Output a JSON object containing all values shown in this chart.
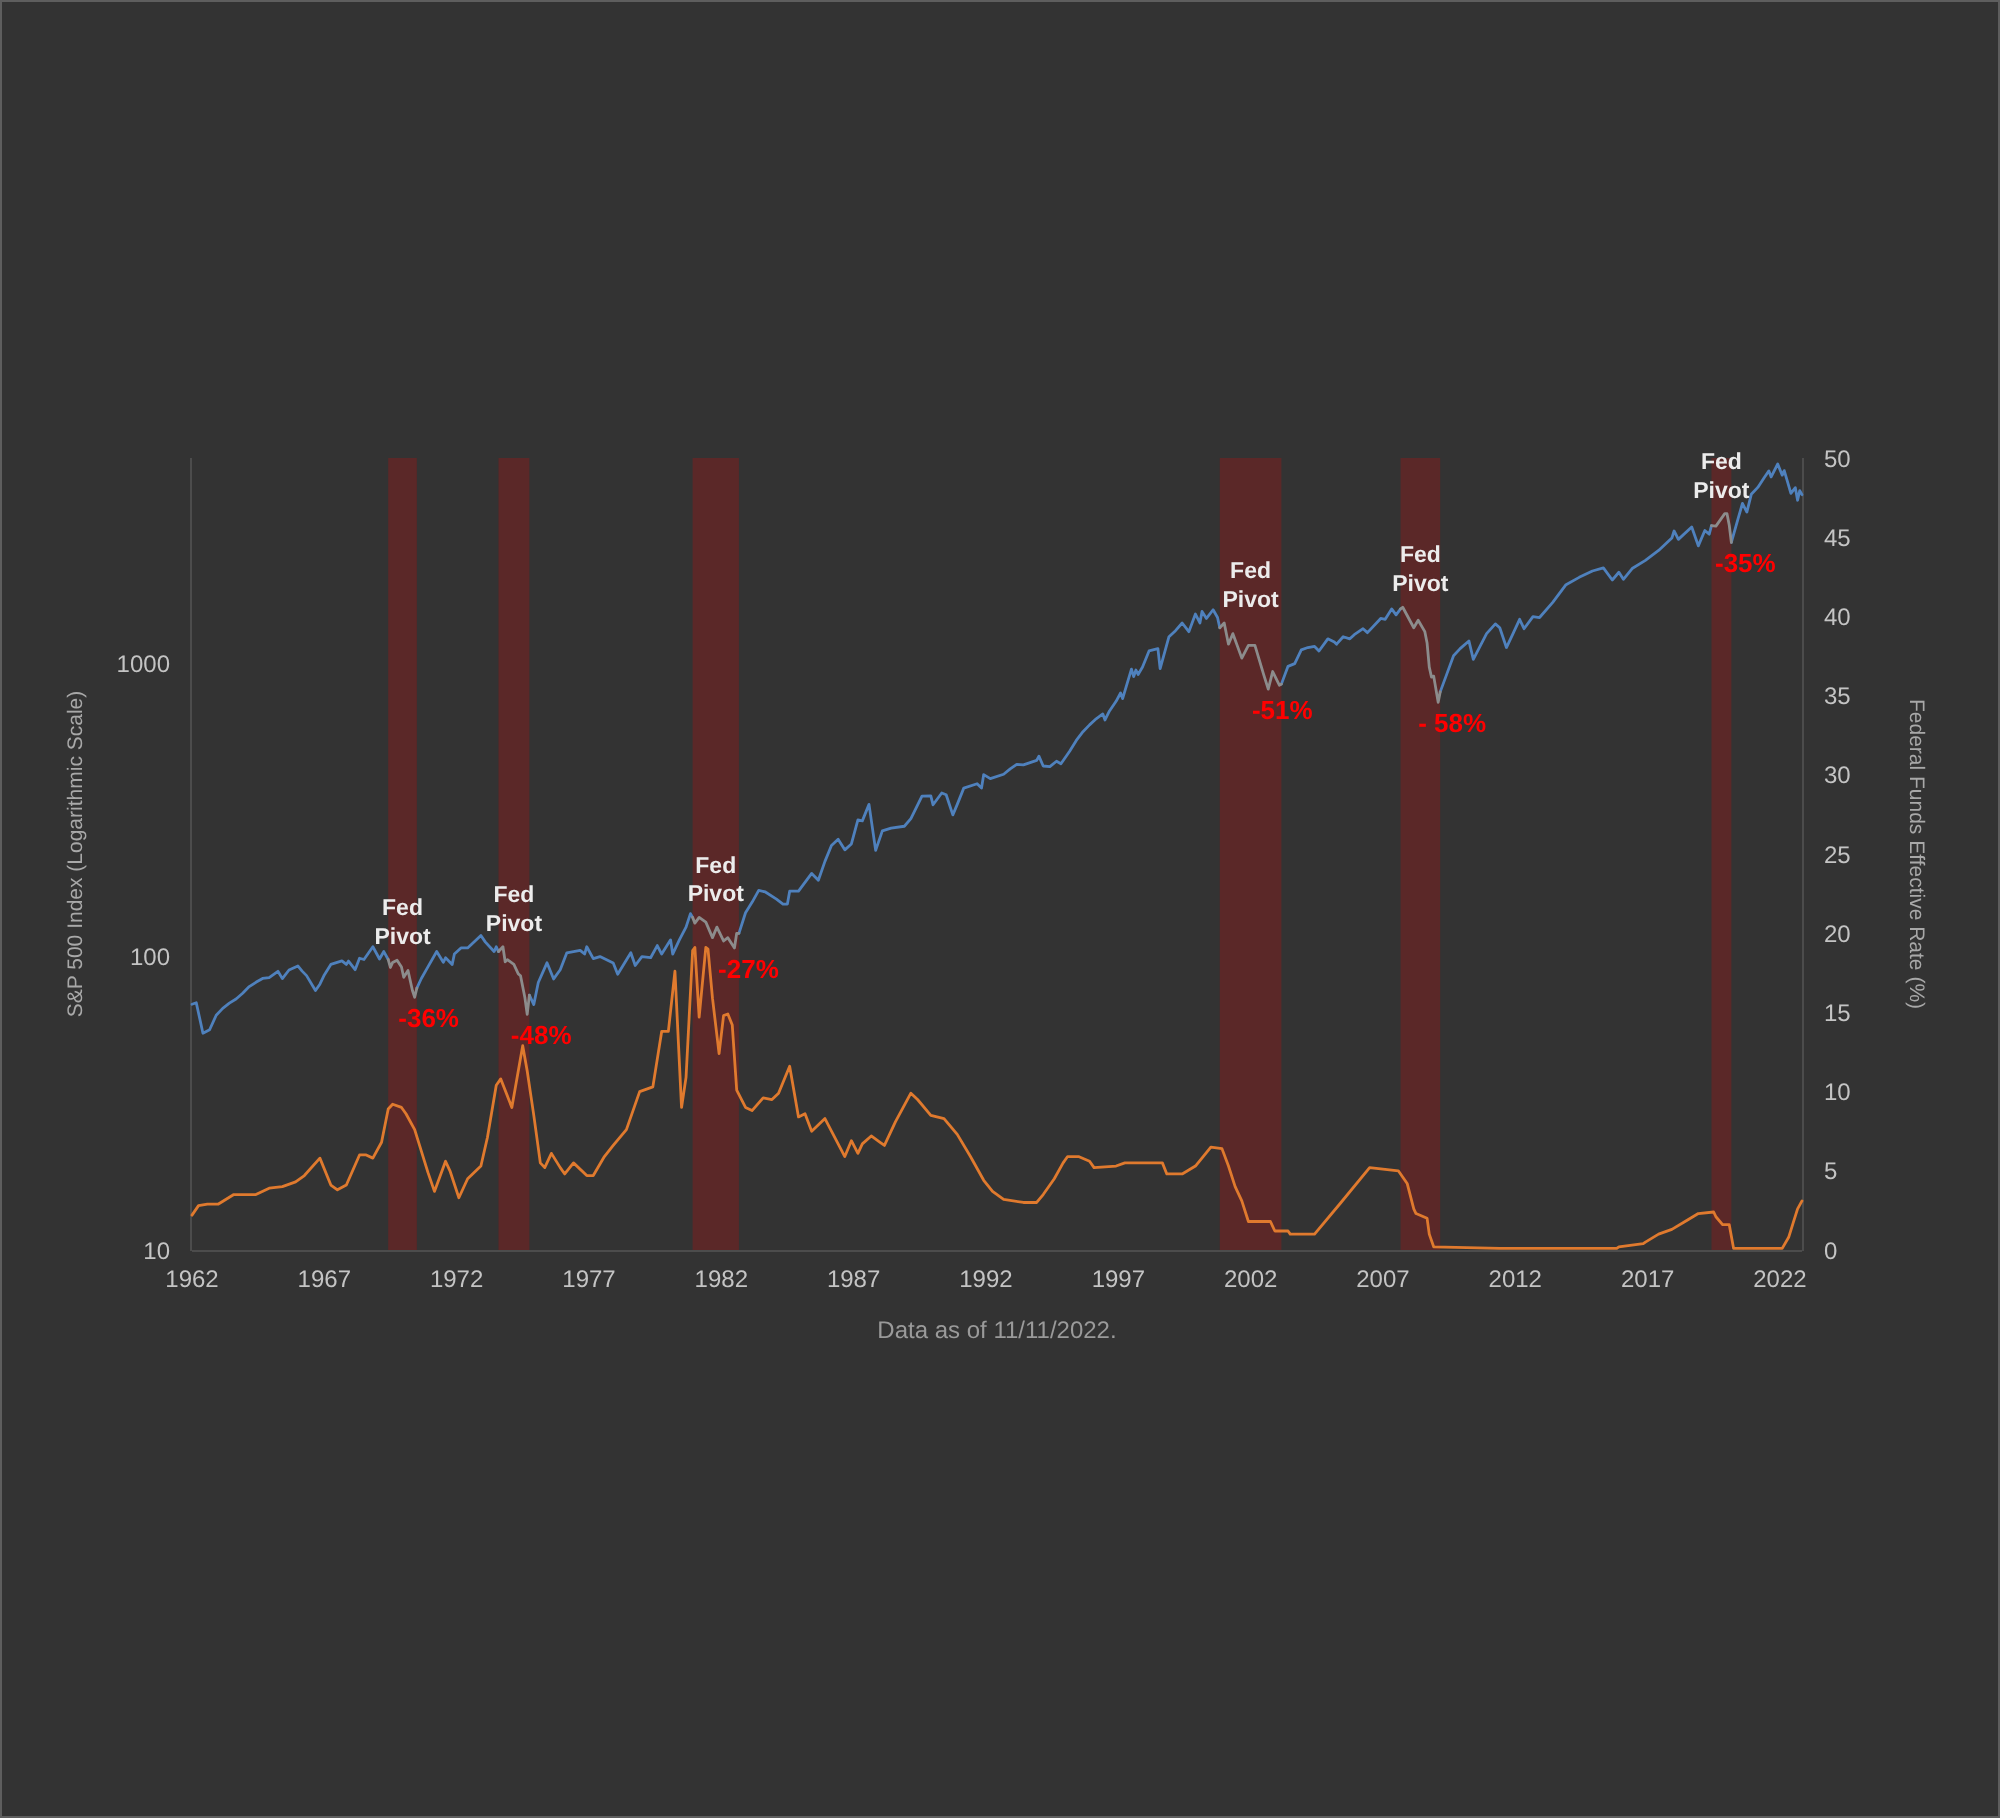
{
  "chart_data": {
    "type": "line",
    "ylabel": "S&P 500 Index (Logarithmic Scale)",
    "y2label": "Federal Funds Effective Rate (%)",
    "xlim": [
      "1962-01",
      "2022-11"
    ],
    "xticks": [
      "1962",
      "1967",
      "1972",
      "1977",
      "1982",
      "1987",
      "1992",
      "1997",
      "2002",
      "2007",
      "2012",
      "2017",
      "2022"
    ],
    "ylim": [
      10,
      5000
    ],
    "yticks": [
      10,
      100,
      1000
    ],
    "log": "y",
    "y2lim": [
      0,
      50
    ],
    "y2ticks": [
      0,
      5,
      10,
      15,
      20,
      25,
      30,
      35,
      40,
      45,
      50
    ],
    "series": [
      {
        "color": "#4f81bd",
        "x": [
          "1962-01",
          "1962-03",
          "1962-06",
          "1962-09",
          "1962-12",
          "1963-03",
          "1963-06",
          "1963-09",
          "1963-12",
          "1964-03",
          "1964-06",
          "1964-09",
          "1964-12",
          "1965-04",
          "1965-06",
          "1965-09",
          "1966-01",
          "1966-03",
          "1966-05",
          "1966-09",
          "1966-11",
          "1967-01",
          "1967-04",
          "1967-09",
          "1967-11",
          "1967-12",
          "1968-03",
          "1968-05",
          "1968-07",
          "1968-11",
          "1969-02",
          "1969-04",
          "1969-06",
          "1970-01",
          "1970-07",
          "1970-09",
          "1970-12",
          "1971-04",
          "1971-07",
          "1971-08",
          "1971-11",
          "1971-12",
          "1972-03",
          "1972-06",
          "1972-12",
          "1973-02",
          "1973-06",
          "1973-07",
          "1973-08",
          "1974-03",
          "1974-10",
          "1974-12",
          "1975-02",
          "1975-06",
          "1975-09",
          "1975-12",
          "1976-03",
          "1976-09",
          "1976-11",
          "1976-12",
          "1977-03",
          "1977-06",
          "1977-12",
          "1978-02",
          "1978-08",
          "1978-10",
          "1979-01",
          "1979-05",
          "1979-08",
          "1979-10",
          "1980-02",
          "1980-03",
          "1980-06",
          "1980-09",
          "1980-11",
          "1980-12",
          "1981-10",
          "1982-09",
          "1982-12",
          "1983-03",
          "1983-06",
          "1983-09",
          "1984-02",
          "1984-05",
          "1984-07",
          "1984-08",
          "1984-12",
          "1985-06",
          "1985-09",
          "1985-12",
          "1986-03",
          "1986-06",
          "1986-09",
          "1986-12",
          "1987-03",
          "1987-05",
          "1987-08",
          "1987-11",
          "1988-02",
          "1988-06",
          "1988-12",
          "1989-03",
          "1989-08",
          "1989-12",
          "1990-01",
          "1990-05",
          "1990-07",
          "1990-10",
          "1990-12",
          "1991-03",
          "1991-09",
          "1991-11",
          "1991-12",
          "1992-03",
          "1992-09",
          "1992-12",
          "1993-03",
          "1993-06",
          "1993-12",
          "1994-01",
          "1994-03",
          "1994-06",
          "1994-09",
          "1994-11",
          "1995-03",
          "1995-06",
          "1995-09",
          "1995-12",
          "1996-03",
          "1996-06",
          "1996-07",
          "1996-09",
          "1996-12",
          "1997-02",
          "1997-03",
          "1997-07",
          "1997-08",
          "1997-09",
          "1997-10",
          "1997-12",
          "1998-03",
          "1998-07",
          "1998-08",
          "1998-12",
          "1999-03",
          "1999-06",
          "1999-09",
          "1999-12",
          "2000-02",
          "2000-03",
          "2000-05",
          "2000-08",
          "2000-10",
          "2000-11",
          "2002-01",
          "2003-03",
          "2003-06",
          "2003-09",
          "2003-12",
          "2004-03",
          "2004-06",
          "2004-08",
          "2004-12",
          "2005-03",
          "2005-04",
          "2005-07",
          "2005-10",
          "2005-12",
          "2006-04",
          "2006-06",
          "2006-12",
          "2007-02",
          "2007-05",
          "2007-07",
          "2007-09",
          "2008-06",
          "2009-03",
          "2009-06",
          "2009-09",
          "2009-12",
          "2010-04",
          "2010-06",
          "2010-12",
          "2011-04",
          "2011-06",
          "2011-09",
          "2011-12",
          "2012-03",
          "2012-05",
          "2012-09",
          "2012-12",
          "2013-06",
          "2013-12",
          "2014-06",
          "2014-12",
          "2015-05",
          "2015-09",
          "2015-12",
          "2016-02",
          "2016-06",
          "2016-12",
          "2017-06",
          "2017-12",
          "2018-01",
          "2018-03",
          "2018-09",
          "2018-12",
          "2019-03",
          "2019-05",
          "2019-06",
          "2019-11",
          "2020-03",
          "2020-06",
          "2020-08",
          "2020-10",
          "2020-12",
          "2021-03",
          "2021-06",
          "2021-08",
          "2021-09",
          "2021-12",
          "2022-02",
          "2022-03",
          "2022-06",
          "2022-08",
          "2022-09",
          "2022-10",
          "2022-11"
        ],
        "values": [
          68.8,
          69.6,
          54.8,
          56.3,
          63.1,
          66.6,
          69.4,
          71.7,
          75.0,
          79.0,
          81.7,
          84.2,
          84.8,
          89.1,
          84.1,
          90.0,
          92.9,
          89.2,
          86.1,
          76.6,
          80.5,
          86.6,
          94.0,
          96.7,
          94.0,
          96.5,
          90.2,
          98.7,
          97.7,
          108,
          98.1,
          104,
          97.7,
          null,
          78.1,
          84.2,
          92.2,
          104,
          95.6,
          99.0,
          93.9,
          102,
          107,
          107,
          118,
          112,
          104,
          108,
          104,
          null,
          73.9,
          68.6,
          81.6,
          95.2,
          83.9,
          90.2,
          103,
          105,
          102,
          108,
          98.4,
          100,
          95.1,
          87.0,
          103,
          93.2,
          99.9,
          99.1,
          109,
          102,
          114,
          102,
          114,
          126,
          140,
          136,
          null,
          120,
          141,
          153,
          168,
          166,
          157,
          151,
          151,
          167,
          167,
          192,
          182,
          211,
          239,
          251,
          231,
          242,
          292,
          290,
          330,
          230,
          268,
          274,
          278,
          295,
          352,
          353,
          329,
          361,
          356,
          304,
          330,
          375,
          388,
          375,
          417,
          404,
          418,
          436,
          452,
          450,
          466,
          482,
          446,
          444,
          463,
          454,
          501,
          545,
          584,
          616,
          646,
          671,
          640,
          687,
          741,
          791,
          757,
          954,
          900,
          947,
          915,
          970,
          1100,
          1120,
          957,
          1230,
          1290,
          1370,
          1280,
          1470,
          1370,
          1500,
          1420,
          1520,
          1430,
          1320,
          null,
          848,
          975,
          996,
          1110,
          1130,
          1140,
          1100,
          1210,
          1180,
          1160,
          1230,
          1210,
          1250,
          1310,
          1270,
          1420,
          1410,
          1530,
          1460,
          1530,
          null,
          798,
          919,
          1060,
          1120,
          1190,
          1030,
          1260,
          1360,
          1320,
          1130,
          1260,
          1410,
          1310,
          1440,
          1430,
          1610,
          1850,
          1960,
          2060,
          2110,
          1920,
          2040,
          1930,
          2100,
          2240,
          2420,
          2670,
          2820,
          2640,
          2910,
          2510,
          2830,
          2750,
          2940,
          null,
          2580,
          3100,
          3500,
          3270,
          3760,
          3970,
          4300,
          4520,
          4310,
          4770,
          4370,
          4530,
          3790,
          3960,
          3590,
          3870,
          3750
        ]
      },
      {
        "color": "#8c8c8c",
        "x": [
          "1969-06",
          "1969-07",
          "1969-08",
          "1969-10",
          "1969-12",
          "1970-01",
          "1970-03",
          "1970-05",
          "1970-06",
          "1970-07",
          "1972-01",
          "1973-08",
          "1973-10",
          "1973-11",
          "1973-12",
          "1974-03",
          "1974-05",
          "1974-06",
          "1974-08",
          "1974-09",
          "1974-10",
          "1977-01",
          "1980-12",
          "1981-01",
          "1981-03",
          "1981-06",
          "1981-09",
          "1981-11",
          "1982-02",
          "1982-04",
          "1982-07",
          "1982-08",
          "1982-09",
          "1990-01",
          "2000-11",
          "2001-01",
          "2001-03",
          "2001-05",
          "2001-09",
          "2001-12",
          "2002-03",
          "2002-07",
          "2002-09",
          "2002-11",
          "2003-02",
          "2003-03",
          "2005-01",
          "2007-09",
          "2007-10",
          "2008-03",
          "2008-05",
          "2008-08",
          "2008-09",
          "2008-10",
          "2008-11",
          "2008-12",
          "2009-02",
          "2009-03",
          "2014-01",
          "2019-06",
          "2019-08",
          "2019-12",
          "2020-01",
          "2020-02",
          "2020-03"
        ],
        "values": [
          97.7,
          91.8,
          95.5,
          97.2,
          92.1,
          85.0,
          89.6,
          76.6,
          72.7,
          78.1,
          null,
          104,
          108,
          96.0,
          97.6,
          94.0,
          87.3,
          86.0,
          72.2,
          63.5,
          73.9,
          null,
          136,
          130,
          136,
          131,
          116,
          126,
          113,
          116,
          107,
          120,
          120,
          null,
          1320,
          1370,
          1160,
          1260,
          1040,
          1150,
          1150,
          912,
          815,
          936,
          841,
          848,
          null,
          1530,
          1550,
          1320,
          1400,
          1280,
          1170,
          969,
          896,
          903,
          735,
          798,
          null,
          2940,
          2930,
          3230,
          3230,
          2950,
          2580
        ]
      },
      {
        "color": "#e07a2e",
        "axis": "y2",
        "x": [
          "1962-01",
          "1962-04",
          "1962-08",
          "1963-01",
          "1963-08",
          "1964-06",
          "1964-12",
          "1965-06",
          "1965-12",
          "1966-04",
          "1966-11",
          "1967-04",
          "1967-07",
          "1967-11",
          "1968-05",
          "1968-08",
          "1968-11",
          "1969-03",
          "1969-06",
          "1969-08",
          "1969-12",
          "1970-02",
          "1970-06",
          "1970-12",
          "1971-03",
          "1971-08",
          "1971-10",
          "1972-02",
          "1972-06",
          "1972-12",
          "1973-03",
          "1973-07",
          "1973-09",
          "1974-02",
          "1974-07",
          "1974-09",
          "1974-12",
          "1975-03",
          "1975-05",
          "1975-08",
          "1975-12",
          "1976-02",
          "1976-06",
          "1976-12",
          "1977-03",
          "1977-08",
          "1977-12",
          "1978-06",
          "1978-12",
          "1979-06",
          "1979-10",
          "1980-01",
          "1980-04",
          "1980-07",
          "1980-09",
          "1980-12",
          "1981-01",
          "1981-03",
          "1981-06",
          "1981-07",
          "1981-09",
          "1981-12",
          "1982-02",
          "1982-04",
          "1982-06",
          "1982-08",
          "1982-12",
          "1983-03",
          "1983-08",
          "1983-12",
          "1984-03",
          "1984-08",
          "1984-12",
          "1985-03",
          "1985-06",
          "1985-12",
          "1986-03",
          "1986-09",
          "1986-12",
          "1987-03",
          "1987-05",
          "1987-09",
          "1988-01",
          "1988-03",
          "1988-08",
          "1989-03",
          "1989-06",
          "1989-12",
          "1990-06",
          "1990-12",
          "1991-06",
          "1991-12",
          "1992-04",
          "1992-09",
          "1993-06",
          "1993-12",
          "1994-03",
          "1994-08",
          "1994-12",
          "1995-02",
          "1995-07",
          "1995-12",
          "1996-02",
          "1996-12",
          "1997-04",
          "1998-09",
          "1998-11",
          "1999-06",
          "1999-12",
          "2000-07",
          "2000-12",
          "2001-03",
          "2001-06",
          "2001-09",
          "2001-12",
          "2002-10",
          "2002-12",
          "2003-06",
          "2003-07",
          "2004-06",
          "2005-06",
          "2006-07",
          "2007-08",
          "2007-12",
          "2008-03",
          "2008-04",
          "2008-09",
          "2008-10",
          "2008-12",
          "2011-06",
          "2015-11",
          "2015-12",
          "2016-11",
          "2016-12",
          "2017-06",
          "2017-12",
          "2018-06",
          "2018-12",
          "2019-07",
          "2019-08",
          "2019-11",
          "2020-02",
          "2020-04",
          "2022-02",
          "2022-05",
          "2022-07",
          "2022-09",
          "2022-11"
        ],
        "values": [
          2.2,
          2.8,
          2.9,
          2.9,
          3.5,
          3.5,
          3.9,
          4.0,
          4.3,
          4.7,
          5.8,
          4.1,
          3.8,
          4.1,
          6.0,
          6.0,
          5.8,
          6.8,
          8.9,
          9.2,
          9.0,
          8.6,
          7.6,
          4.9,
          3.7,
          5.6,
          5.0,
          3.3,
          4.5,
          5.3,
          7.1,
          10.4,
          10.8,
          9.0,
          12.9,
          11.3,
          8.5,
          5.5,
          5.2,
          6.1,
          5.2,
          4.8,
          5.5,
          4.7,
          4.7,
          5.9,
          6.6,
          7.6,
          10.0,
          10.3,
          13.8,
          13.8,
          17.6,
          9.0,
          10.9,
          18.9,
          19.1,
          14.7,
          19.1,
          19.0,
          15.9,
          12.4,
          14.8,
          14.9,
          14.2,
          10.1,
          9.0,
          8.8,
          9.6,
          9.5,
          9.9,
          11.6,
          8.4,
          8.6,
          7.5,
          8.3,
          7.5,
          5.9,
          6.9,
          6.1,
          6.7,
          7.2,
          6.8,
          6.6,
          8.1,
          9.9,
          9.5,
          8.5,
          8.3,
          7.3,
          5.9,
          4.4,
          3.7,
          3.2,
          3.0,
          3.0,
          3.5,
          4.5,
          5.5,
          5.9,
          5.9,
          5.6,
          5.2,
          5.3,
          5.5,
          5.5,
          4.8,
          4.8,
          5.3,
          6.5,
          6.4,
          5.3,
          4.0,
          3.1,
          1.8,
          1.8,
          1.2,
          1.2,
          1.0,
          1.0,
          3.0,
          5.2,
          5.0,
          4.2,
          2.6,
          2.3,
          2.0,
          1.0,
          0.2,
          0.1,
          0.1,
          0.2,
          0.4,
          0.5,
          1.0,
          1.3,
          1.8,
          2.3,
          2.4,
          2.1,
          1.6,
          1.6,
          0.1,
          0.1,
          0.8,
          1.7,
          2.6,
          3.1
        ]
      }
    ],
    "bands": [
      {
        "axis": "x",
        "from": "1969-06",
        "to": "1970-07",
        "label": "Fed Pivot",
        "color": "#5b2828"
      },
      {
        "axis": "x",
        "from": "1973-08",
        "to": "1974-10",
        "label": "Fed Pivot",
        "color": "#5b2828"
      },
      {
        "axis": "x",
        "from": "1980-12",
        "to": "1982-09",
        "label": "Fed Pivot",
        "color": "#5b2828"
      },
      {
        "axis": "x",
        "from": "2000-11",
        "to": "2003-03",
        "label": "Fed Pivot",
        "color": "#5b2828"
      },
      {
        "axis": "x",
        "from": "2007-09",
        "to": "2009-03",
        "label": "Fed Pivot",
        "color": "#5b2828"
      },
      {
        "axis": "x",
        "from": "2019-06",
        "to": "2020-03",
        "label": "Fed Pivot",
        "color": "#5b2828"
      }
    ],
    "annotations": [
      {
        "text": "-36%",
        "x": "1970-06",
        "y": 72.7
      },
      {
        "text": "-48%",
        "x": "1974-09",
        "y": 63.5
      },
      {
        "text": "-27%",
        "x": "1982-07",
        "y": 107
      },
      {
        "text": "-51%",
        "x": "2002-09",
        "y": 815
      },
      {
        "text": "- 58%",
        "x": "2009-02",
        "y": 735
      },
      {
        "text": "-35%",
        "x": "2020-03",
        "y": 2580
      },
      "Data as of 11/11/2022."
    ]
  }
}
